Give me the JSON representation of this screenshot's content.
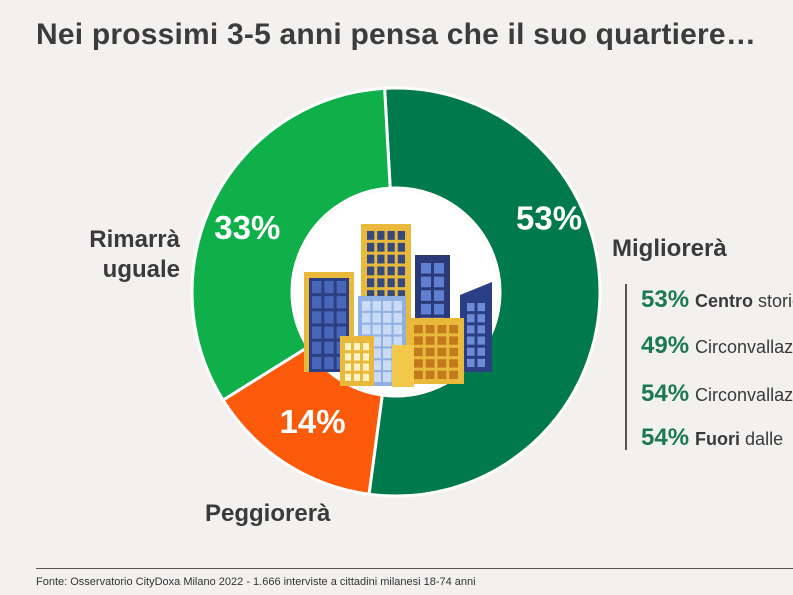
{
  "title": "Nei prossimi 3-5 anni pensa che il suo quartiere…",
  "chart_data": {
    "type": "pie",
    "donut": true,
    "slices": [
      {
        "label": "Migliorerà",
        "value": 53,
        "display": "53%",
        "color": "#007a4d"
      },
      {
        "label": "Peggiorerà",
        "value": 14,
        "display": "14%",
        "color": "#fa5a0a"
      },
      {
        "label": "Rimarrà uguale",
        "value": 33,
        "display": "33%",
        "color": "#0fb04a"
      }
    ],
    "center_image": "city-skyline-illustration"
  },
  "labels": {
    "migliorera": "Migliorerà",
    "rimarra_line1": "Rimarrà",
    "rimarra_line2": "uguale",
    "peggiorera": "Peggiorerà"
  },
  "breakdown": [
    {
      "pct": "53%",
      "bold": "Centro",
      "text": " storico"
    },
    {
      "pct": "49%",
      "bold": "",
      "text": "Circonvallazione"
    },
    {
      "pct": "54%",
      "bold": "",
      "text": "Circonvallazione"
    },
    {
      "pct": "54%",
      "bold": "Fuori",
      "text": " dalle"
    }
  ],
  "source": "Fonte: Osservatorio CityDoxa Milano 2022 - 1.666 interviste a cittadini milanesi 18-74 anni",
  "colors": {
    "accent_green": "#1b7a4e",
    "text": "#3a3a3a",
    "background": "#f2f1ef"
  }
}
